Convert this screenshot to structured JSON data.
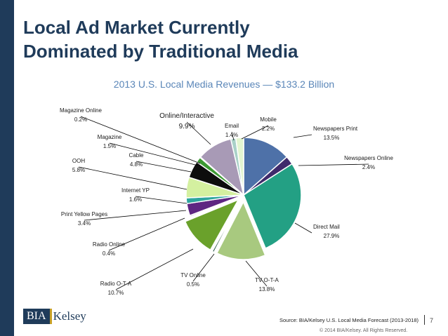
{
  "slide": {
    "title_line1": "Local Ad Market Currently",
    "title_line2": "Dominated by Traditional Media",
    "source": "Source: BIA/Kelsey U.S. Local Media Forecast (2013-2018)",
    "copyright": "© 2014 BIA/Kelsey. All Rights Reserved.",
    "page_number": "7",
    "logo_box_text": "BIA",
    "logo_name_text": "Kelsey"
  },
  "colors": {
    "title": "#1f3b5a",
    "subtitle": "#5a86b8",
    "left_bar": "#1f3b5a"
  },
  "chart_data": {
    "type": "pie",
    "title": "2013 U.S. Local Media Revenues — $133.2 Billion",
    "start_angle_deg": 0,
    "direction": "clockwise",
    "slices": [
      {
        "name": "Newspapers Print",
        "value": 13.5,
        "label": "13.5%",
        "color": "#4e71a8",
        "exploded": false
      },
      {
        "name": "Newspapers Online",
        "value": 2.4,
        "label": "2.4%",
        "color": "#3f2a6b",
        "exploded": false
      },
      {
        "name": "Direct Mail",
        "value": 27.9,
        "label": "27.9%",
        "color": "#23a084",
        "exploded": false
      },
      {
        "name": "TV O-T-A",
        "value": 13.8,
        "label": "13.8%",
        "color": "#a8c97f",
        "exploded": true
      },
      {
        "name": "TV Online",
        "value": 0.5,
        "label": "0.5%",
        "color": "#1e4f3c",
        "exploded": true
      },
      {
        "name": "Radio O-T-A",
        "value": 10.7,
        "label": "10.7%",
        "color": "#6aa12b",
        "exploded": true
      },
      {
        "name": "Radio Online",
        "value": 0.4,
        "label": "0.4%",
        "color": "#bfc4cb",
        "exploded": false
      },
      {
        "name": "Print Yellow Pages",
        "value": 3.4,
        "label": "3.4%",
        "color": "#5e2682",
        "exploded": false
      },
      {
        "name": "Internet YP",
        "value": 1.6,
        "label": "1.6%",
        "color": "#2fa59e",
        "exploded": false
      },
      {
        "name": "OOH",
        "value": 5.8,
        "label": "5.8%",
        "color": "#d4f0a0",
        "exploded": false
      },
      {
        "name": "Cable",
        "value": 4.8,
        "label": "4.8%",
        "color": "#0d0d0d",
        "exploded": false
      },
      {
        "name": "Magazine",
        "value": 1.5,
        "label": "1.5%",
        "color": "#3c9a33",
        "exploded": false
      },
      {
        "name": "Magazine Online",
        "value": 0.2,
        "label": "0.2%",
        "color": "#8a9aa8",
        "exploded": false
      },
      {
        "name": "Online/Interactive",
        "value": 9.9,
        "label": "9.9%",
        "color": "#a89ab6",
        "exploded": false
      },
      {
        "name": "Email",
        "value": 1.4,
        "label": "1.4%",
        "color": "#a9d1c8",
        "exploded": false
      },
      {
        "name": "Mobile",
        "value": 2.2,
        "label": "2.2%",
        "color": "#e3f5d0",
        "exploded": false
      }
    ]
  }
}
